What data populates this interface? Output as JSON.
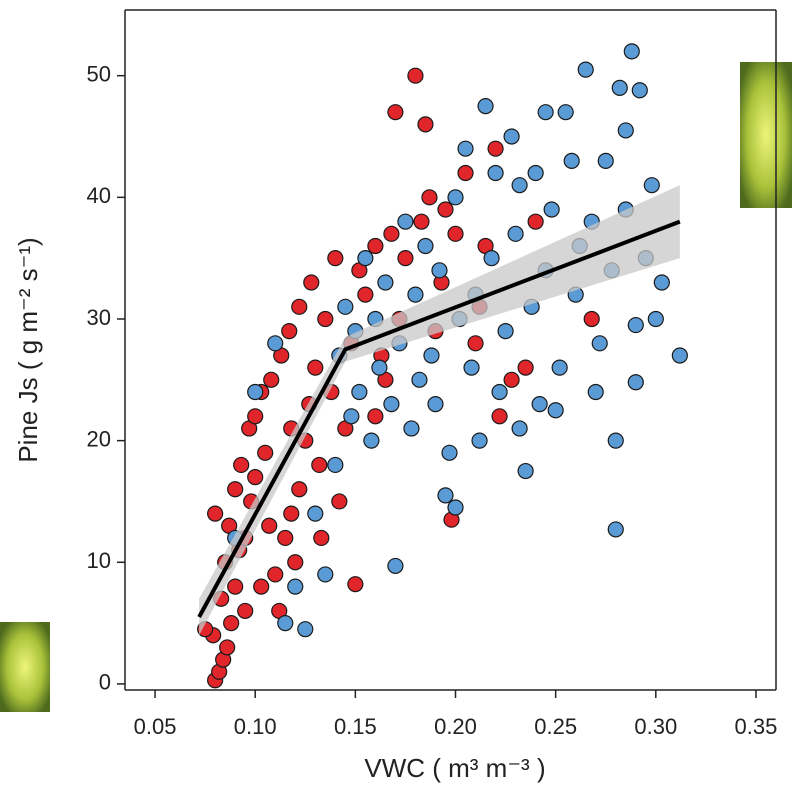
{
  "chart_data": {
    "type": "scatter",
    "x_label": "VWC ( m³ m⁻³ )",
    "y_label": "Pine Js ( g m⁻² s⁻¹)",
    "xlim": [
      0.035,
      0.36
    ],
    "ylim": [
      -0.5,
      55.4
    ],
    "xticks": [
      0.05,
      {
        "value": 0.1,
        "label": "0.10"
      },
      0.15,
      {
        "value": 0.2,
        "label": "0.20"
      },
      0.25,
      {
        "value": 0.3,
        "label": "0.30"
      },
      0.35
    ],
    "yticks": [
      0,
      10,
      20,
      30,
      40,
      50
    ],
    "series": [
      {
        "color": "#e0262a",
        "x": [
          0.08,
          0.082,
          0.084,
          0.086,
          0.079,
          0.075,
          0.088,
          0.083,
          0.09,
          0.085,
          0.092,
          0.087,
          0.095,
          0.08,
          0.098,
          0.09,
          0.1,
          0.093,
          0.105,
          0.097,
          0.1,
          0.103,
          0.108,
          0.11,
          0.112,
          0.115,
          0.118,
          0.12,
          0.122,
          0.125,
          0.127,
          0.13,
          0.132,
          0.113,
          0.117,
          0.122,
          0.128,
          0.135,
          0.14,
          0.142,
          0.145,
          0.15,
          0.148,
          0.152,
          0.155,
          0.16,
          0.163,
          0.165,
          0.168,
          0.17,
          0.172,
          0.175,
          0.18,
          0.183,
          0.185,
          0.187,
          0.19,
          0.193,
          0.195,
          0.198,
          0.2,
          0.205,
          0.21,
          0.212,
          0.215,
          0.22,
          0.222,
          0.228,
          0.235,
          0.24,
          0.268,
          0.107,
          0.103,
          0.095,
          0.133,
          0.16,
          0.118,
          0.138
        ],
        "values": [
          0.3,
          1,
          2,
          3,
          4,
          4.5,
          5,
          7,
          8,
          10,
          11,
          13,
          12,
          14,
          15,
          16,
          17,
          18,
          19,
          21,
          22,
          24,
          25,
          9,
          6,
          12,
          14,
          10,
          16,
          20,
          23,
          26,
          18,
          27,
          29,
          31,
          33,
          30,
          35,
          15,
          21,
          8.2,
          28,
          34,
          32,
          36,
          27,
          25,
          37,
          47,
          30,
          35,
          50,
          38,
          46,
          40,
          29,
          33,
          39,
          13.5,
          37,
          42,
          28,
          31,
          36,
          44,
          22,
          25,
          26,
          38,
          30,
          13,
          8,
          6,
          12,
          22,
          21,
          24
        ]
      },
      {
        "color": "#5b9bd5",
        "x": [
          0.09,
          0.1,
          0.11,
          0.115,
          0.12,
          0.125,
          0.13,
          0.135,
          0.14,
          0.142,
          0.145,
          0.148,
          0.15,
          0.152,
          0.155,
          0.158,
          0.16,
          0.162,
          0.165,
          0.168,
          0.17,
          0.172,
          0.175,
          0.178,
          0.18,
          0.182,
          0.185,
          0.188,
          0.19,
          0.192,
          0.195,
          0.197,
          0.2,
          0.2,
          0.202,
          0.205,
          0.208,
          0.21,
          0.212,
          0.215,
          0.218,
          0.22,
          0.222,
          0.225,
          0.228,
          0.23,
          0.232,
          0.235,
          0.238,
          0.24,
          0.242,
          0.245,
          0.248,
          0.25,
          0.252,
          0.255,
          0.258,
          0.26,
          0.262,
          0.265,
          0.268,
          0.27,
          0.272,
          0.275,
          0.278,
          0.28,
          0.28,
          0.282,
          0.285,
          0.288,
          0.29,
          0.29,
          0.292,
          0.295,
          0.298,
          0.3,
          0.303,
          0.312,
          0.285,
          0.245,
          0.232
        ],
        "values": [
          12,
          24,
          28,
          5,
          8,
          4.5,
          14,
          9,
          18,
          27,
          31,
          22,
          29,
          24,
          35,
          20,
          30,
          26,
          33,
          23,
          9.7,
          28,
          38,
          21,
          32,
          25,
          36,
          27,
          23,
          34,
          15.5,
          19,
          14.5,
          40,
          30,
          44,
          26,
          32,
          20,
          47.5,
          35,
          42,
          24,
          29,
          45,
          37,
          21,
          17.5,
          31,
          42,
          23,
          34,
          39,
          22.5,
          26,
          47,
          43,
          32,
          36,
          50.5,
          38,
          24,
          28,
          43,
          34,
          20,
          12.7,
          49,
          39,
          52,
          29.5,
          24.8,
          48.8,
          35,
          41,
          30,
          33,
          27,
          45.5,
          47,
          41
        ]
      }
    ],
    "fit": {
      "color": "#000000",
      "band_color": "#c8c8c8",
      "x": [
        0.072,
        0.145,
        0.312
      ],
      "values": [
        5.5,
        27.5,
        38
      ],
      "band_upper": [
        7,
        28.5,
        41
      ],
      "band_lower": [
        4,
        26.5,
        35
      ]
    }
  }
}
